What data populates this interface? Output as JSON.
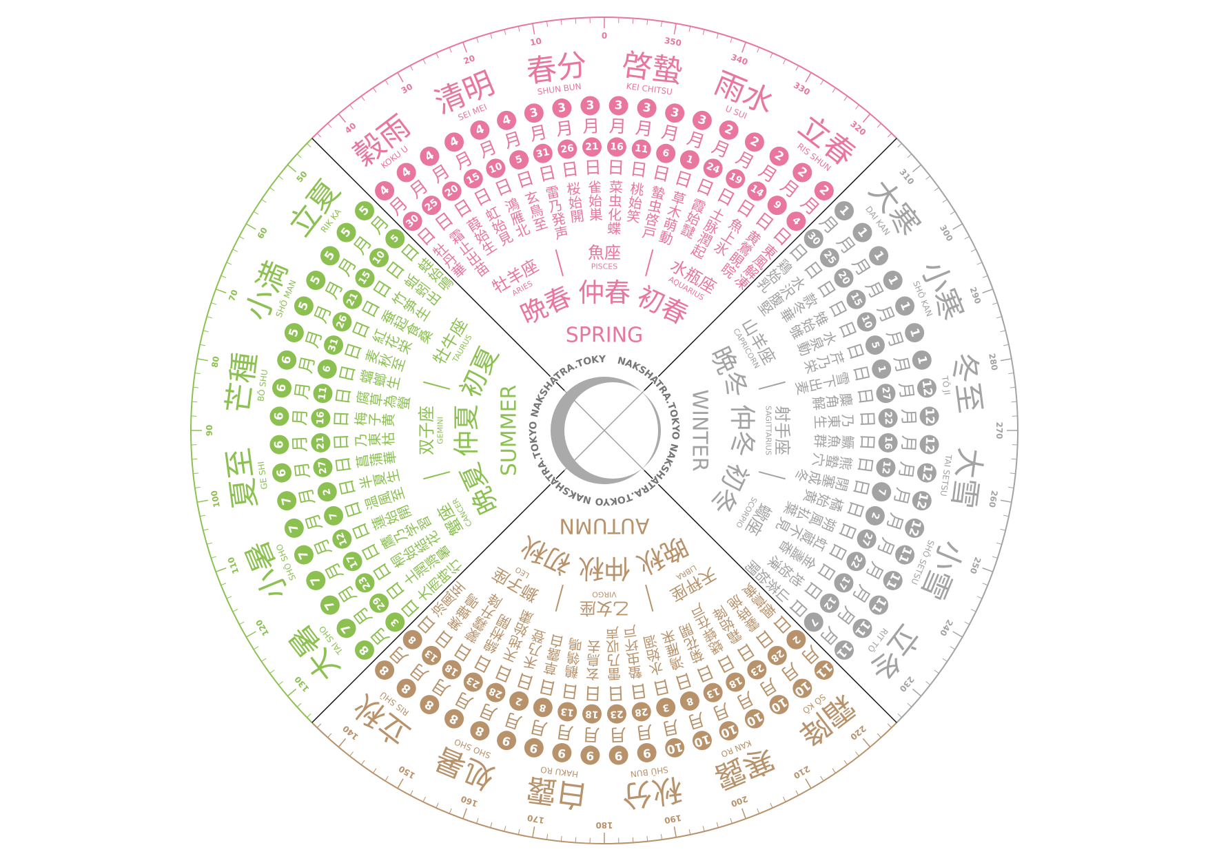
{
  "brand": "NAKSHATRA.TOKYO",
  "month_char": "月",
  "day_char": "日",
  "degrees": [
    0,
    10,
    20,
    30,
    40,
    50,
    60,
    70,
    80,
    90,
    100,
    110,
    120,
    130,
    140,
    150,
    160,
    170,
    180,
    190,
    200,
    210,
    220,
    230,
    240,
    250,
    260,
    270,
    280,
    290,
    300,
    310,
    320,
    330,
    340,
    350
  ],
  "seasons": [
    {
      "name": "SPRING",
      "color": "#e8769f",
      "sub": [
        "初春",
        "仲春",
        "晩春"
      ],
      "zodiac": [
        {
          "kanji": "水瓶座",
          "latin": "AQUARIUS"
        },
        {
          "kanji": "魚座",
          "latin": "PISCES"
        },
        {
          "kanji": "牡羊座",
          "latin": "ARIES"
        }
      ],
      "terms": [
        {
          "kanji": "立春",
          "romaji": "RIS SHUN",
          "ko": [
            {
              "month": 2,
              "day": 4,
              "name": "東風解凍"
            },
            {
              "month": 2,
              "day": 9,
              "name": "黄鶯睍睆"
            },
            {
              "month": 2,
              "day": 14,
              "name": "魚上氷"
            }
          ]
        },
        {
          "kanji": "雨水",
          "romaji": "U SUI",
          "ko": [
            {
              "month": 2,
              "day": 19,
              "name": "土脉潤起"
            },
            {
              "month": 2,
              "day": 24,
              "name": "霞始靆"
            },
            {
              "month": 3,
              "day": 1,
              "name": "草木萌動"
            }
          ]
        },
        {
          "kanji": "啓蟄",
          "romaji": "KEI CHITSU",
          "ko": [
            {
              "month": 3,
              "day": 6,
              "name": "蟄虫啓戸"
            },
            {
              "month": 3,
              "day": 11,
              "name": "桃始笑"
            },
            {
              "month": 3,
              "day": 16,
              "name": "菜虫化蝶"
            }
          ]
        },
        {
          "kanji": "春分",
          "romaji": "SHUN BUN",
          "ko": [
            {
              "month": 3,
              "day": 21,
              "name": "雀始巣"
            },
            {
              "month": 3,
              "day": 26,
              "name": "桜始開"
            },
            {
              "month": 3,
              "day": 31,
              "name": "雷乃発声"
            }
          ]
        },
        {
          "kanji": "清明",
          "romaji": "SEI MEI",
          "ko": [
            {
              "month": 4,
              "day": 5,
              "name": "玄鳥至"
            },
            {
              "month": 4,
              "day": 10,
              "name": "鴻雁北"
            },
            {
              "month": 4,
              "day": 15,
              "name": "虹始見"
            }
          ]
        },
        {
          "kanji": "穀雨",
          "romaji": "KOKU U",
          "ko": [
            {
              "month": 4,
              "day": 20,
              "name": "葭始生"
            },
            {
              "month": 4,
              "day": 25,
              "name": "霜止出苗"
            },
            {
              "month": 4,
              "day": 30,
              "name": "牡丹華"
            }
          ]
        }
      ]
    },
    {
      "name": "SUMMER",
      "color": "#8cc152",
      "sub": [
        "初夏",
        "仲夏",
        "晩夏"
      ],
      "zodiac": [
        {
          "kanji": "牡牛座",
          "latin": "TAURUS"
        },
        {
          "kanji": "双子座",
          "latin": "GEMINI"
        },
        {
          "kanji": "蟹座",
          "latin": "CANCER"
        }
      ],
      "terms": [
        {
          "kanji": "立夏",
          "romaji": "RIK KA",
          "ko": [
            {
              "month": 5,
              "day": 5,
              "name": "蛙始鳴"
            },
            {
              "month": 5,
              "day": 10,
              "name": "蚯蚓出"
            },
            {
              "month": 5,
              "day": 15,
              "name": "竹笋生"
            }
          ]
        },
        {
          "kanji": "小満",
          "romaji": "SHŌ MAN",
          "ko": [
            {
              "month": 5,
              "day": 21,
              "name": "蚕起食桑"
            },
            {
              "month": 5,
              "day": 26,
              "name": "紅花栄"
            },
            {
              "month": 5,
              "day": 31,
              "name": "麦秋至"
            }
          ]
        },
        {
          "kanji": "芒種",
          "romaji": "BŌ SHU",
          "ko": [
            {
              "month": 6,
              "day": 6,
              "name": "蟷螂生"
            },
            {
              "month": 6,
              "day": 11,
              "name": "腐草為螢"
            },
            {
              "month": 6,
              "day": 16,
              "name": "梅子黄"
            }
          ]
        },
        {
          "kanji": "夏至",
          "romaji": "GE SHI",
          "ko": [
            {
              "month": 6,
              "day": 21,
              "name": "乃東枯"
            },
            {
              "month": 6,
              "day": 27,
              "name": "菖蒲華"
            },
            {
              "month": 7,
              "day": 2,
              "name": "半夏生"
            }
          ]
        },
        {
          "kanji": "小暑",
          "romaji": "SHŌ SHO",
          "ko": [
            {
              "month": 7,
              "day": 7,
              "name": "温風至"
            },
            {
              "month": 7,
              "day": 12,
              "name": "蓮始開"
            },
            {
              "month": 7,
              "day": 17,
              "name": "鷹乃学習"
            }
          ]
        },
        {
          "kanji": "大暑",
          "romaji": "TAI SHO",
          "ko": [
            {
              "month": 7,
              "day": 23,
              "name": "桐始結花"
            },
            {
              "month": 7,
              "day": 29,
              "name": "土潤溽暑"
            },
            {
              "month": 8,
              "day": 3,
              "name": "大雨時行"
            }
          ]
        }
      ]
    },
    {
      "name": "AUTUMN",
      "color": "#b8926a",
      "sub": [
        "初秋",
        "仲秋",
        "晩秋"
      ],
      "zodiac": [
        {
          "kanji": "獅子座",
          "latin": "LEO"
        },
        {
          "kanji": "乙女座",
          "latin": "VIRGO"
        },
        {
          "kanji": "天秤座",
          "latin": "LIBRA"
        }
      ],
      "terms": [
        {
          "kanji": "立秋",
          "romaji": "RIS SHŪ",
          "ko": [
            {
              "month": 8,
              "day": 8,
              "name": "涼風至"
            },
            {
              "month": 8,
              "day": 13,
              "name": "寒蝉鳴"
            },
            {
              "month": 8,
              "day": 18,
              "name": "蒙霧升降"
            }
          ]
        },
        {
          "kanji": "処暑",
          "romaji": "SHO SHO",
          "ko": [
            {
              "month": 8,
              "day": 23,
              "name": "綿柎開"
            },
            {
              "month": 8,
              "day": 28,
              "name": "天地始粛"
            },
            {
              "month": 9,
              "day": 2,
              "name": "禾乃登"
            }
          ]
        },
        {
          "kanji": "白露",
          "romaji": "HAKU RO",
          "ko": [
            {
              "month": 9,
              "day": 8,
              "name": "草露白"
            },
            {
              "month": 9,
              "day": 13,
              "name": "鶺鴒鳴"
            },
            {
              "month": 9,
              "day": 18,
              "name": "玄鳥去"
            }
          ]
        },
        {
          "kanji": "秋分",
          "romaji": "SHŪ BUN",
          "ko": [
            {
              "month": 9,
              "day": 23,
              "name": "雷乃収声"
            },
            {
              "month": 9,
              "day": 28,
              "name": "蟄虫坏戸"
            },
            {
              "month": 10,
              "day": 3,
              "name": "水始涸"
            }
          ]
        },
        {
          "kanji": "寒露",
          "romaji": "KAN RO",
          "ko": [
            {
              "month": 10,
              "day": 8,
              "name": "鴻雁来"
            },
            {
              "month": 10,
              "day": 13,
              "name": "菊花開"
            },
            {
              "month": 10,
              "day": 18,
              "name": "蟋蟀在戸"
            }
          ]
        },
        {
          "kanji": "霜降",
          "romaji": "SŌ KŌ",
          "ko": [
            {
              "month": 10,
              "day": 23,
              "name": "霜始降"
            },
            {
              "month": 10,
              "day": 28,
              "name": "霎時施"
            },
            {
              "month": 11,
              "day": 2,
              "name": "楓蔦黄"
            }
          ]
        }
      ]
    },
    {
      "name": "WINTER",
      "color": "#a3a3a3",
      "sub": [
        "初冬",
        "仲冬",
        "晩冬"
      ],
      "zodiac": [
        {
          "kanji": "蠍座",
          "latin": "SCORPIO"
        },
        {
          "kanji": "射手座",
          "latin": "SAGITTARIUS"
        },
        {
          "kanji": "山羊座",
          "latin": "CAPRICORN"
        }
      ],
      "terms": [
        {
          "kanji": "立冬",
          "romaji": "RIT TŌ",
          "ko": [
            {
              "month": 11,
              "day": 7,
              "name": "山茶始開"
            },
            {
              "month": 11,
              "day": 12,
              "name": "地始凍"
            },
            {
              "month": 11,
              "day": 17,
              "name": "金盞香"
            }
          ]
        },
        {
          "kanji": "小雪",
          "romaji": "SHŌ SETSU",
          "ko": [
            {
              "month": 11,
              "day": 22,
              "name": "虹蔵不見"
            },
            {
              "month": 11,
              "day": 27,
              "name": "朔風払葉"
            },
            {
              "month": 12,
              "day": 2,
              "name": "橘始黄"
            }
          ]
        },
        {
          "kanji": "大雪",
          "romaji": "TAI SETSU",
          "ko": [
            {
              "month": 12,
              "day": 7,
              "name": "閉塞成冬"
            },
            {
              "month": 12,
              "day": 12,
              "name": "熊蟄穴"
            },
            {
              "month": 12,
              "day": 16,
              "name": "鱖魚群"
            }
          ]
        },
        {
          "kanji": "冬至",
          "romaji": "TŌ JI",
          "ko": [
            {
              "month": 12,
              "day": 22,
              "name": "乃東生"
            },
            {
              "month": 12,
              "day": 27,
              "name": "麋角解"
            },
            {
              "month": 1,
              "day": 1,
              "name": "雪下出麦"
            }
          ]
        },
        {
          "kanji": "小寒",
          "romaji": "SHŌ KAN",
          "ko": [
            {
              "month": 1,
              "day": 5,
              "name": "芹乃栄"
            },
            {
              "month": 1,
              "day": 10,
              "name": "水泉動"
            },
            {
              "month": 1,
              "day": 15,
              "name": "雉始雊"
            }
          ]
        },
        {
          "kanji": "大寒",
          "romaji": "DAI KAN",
          "ko": [
            {
              "month": 1,
              "day": 20,
              "name": "款冬華"
            },
            {
              "month": 1,
              "day": 25,
              "name": "水沢腹堅"
            },
            {
              "month": 1,
              "day": 30,
              "name": "鶏始乳"
            }
          ]
        }
      ]
    }
  ]
}
